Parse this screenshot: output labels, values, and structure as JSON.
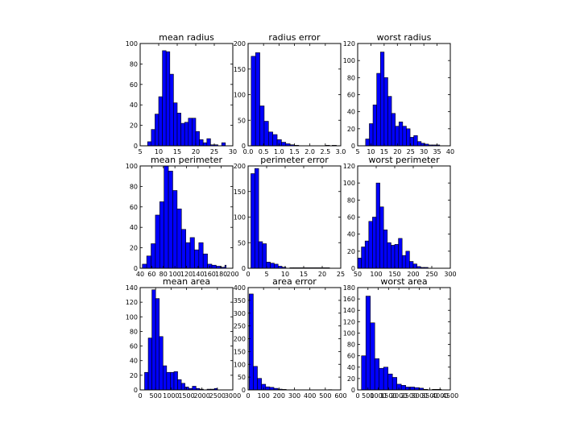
{
  "colors": {
    "bar_fill": "#0000ff",
    "bar_edge": "#000000",
    "background": "#ffffff"
  },
  "chart_data": [
    {
      "type": "bar",
      "title": "mean radius",
      "bin_edges": [
        7,
        8,
        9,
        10,
        11,
        12,
        13,
        14,
        15,
        16,
        17,
        18,
        19,
        20,
        21,
        22,
        23,
        24,
        25,
        26,
        27,
        28
      ],
      "values": [
        4,
        16,
        31,
        48,
        93,
        92,
        70,
        42,
        32,
        22,
        23,
        27,
        27,
        14,
        6,
        3,
        7,
        1,
        1,
        0,
        3
      ],
      "xlim": [
        5,
        30
      ],
      "ylim": [
        0,
        100
      ],
      "xticks": [
        5,
        10,
        15,
        20,
        25,
        30
      ],
      "xticklabels": [
        "5",
        "10",
        "15",
        "20",
        "25",
        "30"
      ],
      "yticks": [
        0,
        20,
        40,
        60,
        80,
        100
      ],
      "yticklabels": [
        "0",
        "20",
        "40",
        "60",
        "80",
        "100"
      ],
      "grid": false
    },
    {
      "type": "bar",
      "title": "radius error",
      "bin_edges": [
        0.1,
        0.24,
        0.38,
        0.52,
        0.66,
        0.8,
        0.94,
        1.08,
        1.22,
        1.36,
        1.5,
        1.64,
        2.5,
        2.64,
        2.72,
        2.86
      ],
      "values": [
        175,
        182,
        78,
        48,
        27,
        22,
        12,
        7,
        4,
        2,
        1,
        0,
        1,
        0,
        1
      ],
      "xlim": [
        0,
        3.0
      ],
      "ylim": [
        0,
        200
      ],
      "xticks": [
        0,
        0.5,
        1.0,
        1.5,
        2.0,
        2.5,
        3.0
      ],
      "xticklabels": [
        "0.0",
        "0.5",
        "1.0",
        "1.5",
        "2.0",
        "2.5",
        "3.0"
      ],
      "yticks": [
        0,
        50,
        100,
        150,
        200
      ],
      "yticklabels": [
        "0",
        "50",
        "100",
        "150",
        "200"
      ],
      "grid": false
    },
    {
      "type": "bar",
      "title": "worst radius",
      "bin_edges": [
        8,
        9.4,
        10.8,
        12.2,
        13.6,
        15,
        16.4,
        17.8,
        19.2,
        20.6,
        22,
        23.4,
        24.8,
        26.2,
        27.6,
        29,
        30.4,
        31.8,
        33.2,
        34.6,
        36
      ],
      "values": [
        8,
        26,
        48,
        85,
        110,
        80,
        58,
        38,
        23,
        28,
        23,
        20,
        10,
        12,
        5,
        3,
        2,
        1,
        1,
        1
      ],
      "xlim": [
        5,
        40
      ],
      "ylim": [
        0,
        120
      ],
      "xticks": [
        5,
        10,
        15,
        20,
        25,
        30,
        35,
        40
      ],
      "xticklabels": [
        "5",
        "10",
        "15",
        "20",
        "25",
        "30",
        "35",
        "40"
      ],
      "yticks": [
        0,
        20,
        40,
        60,
        80,
        100,
        120
      ],
      "yticklabels": [
        "0",
        "20",
        "40",
        "60",
        "80",
        "100",
        "120"
      ],
      "grid": false
    },
    {
      "type": "bar",
      "title": "mean perimeter",
      "bin_edges": [
        43.8,
        51.3,
        58.8,
        66.3,
        73.8,
        81.3,
        88.8,
        96.3,
        103.8,
        111.3,
        118.8,
        126.3,
        133.8,
        141.3,
        148.8,
        156.3,
        163.8,
        171.3,
        178.8,
        186.3,
        188.5
      ],
      "values": [
        4,
        12,
        24,
        52,
        65,
        100,
        95,
        76,
        58,
        38,
        25,
        30,
        18,
        25,
        14,
        4,
        3,
        2,
        1,
        3
      ],
      "xlim": [
        40,
        200
      ],
      "ylim": [
        0,
        100
      ],
      "xticks": [
        40,
        60,
        80,
        100,
        120,
        140,
        160,
        180,
        200
      ],
      "xticklabels": [
        "40",
        "60",
        "80",
        "100",
        "120",
        "140",
        "160",
        "180",
        "200"
      ],
      "yticks": [
        0,
        20,
        40,
        60,
        80,
        100
      ],
      "yticklabels": [
        "0",
        "20",
        "40",
        "60",
        "80",
        "100"
      ],
      "grid": false
    },
    {
      "type": "bar",
      "title": "perimeter error",
      "bin_edges": [
        0.75,
        1.8,
        2.85,
        3.9,
        4.95,
        6.0,
        7.05,
        8.1,
        9.15,
        10.2,
        11.25,
        12.3,
        21.98
      ],
      "values": [
        185,
        195,
        52,
        48,
        12,
        10,
        8,
        4,
        2,
        0,
        1,
        1
      ],
      "xlim": [
        0,
        25
      ],
      "ylim": [
        0,
        200
      ],
      "xticks": [
        0,
        5,
        10,
        15,
        20,
        25
      ],
      "xticklabels": [
        "0",
        "5",
        "10",
        "15",
        "20",
        "25"
      ],
      "yticks": [
        0,
        50,
        100,
        150,
        200
      ],
      "yticklabels": [
        "0",
        "50",
        "100",
        "150",
        "200"
      ],
      "grid": false
    },
    {
      "type": "bar",
      "title": "worst perimeter",
      "bin_edges": [
        50,
        60,
        70,
        80,
        90,
        100,
        110,
        120,
        130,
        140,
        150,
        160,
        170,
        180,
        190,
        200,
        210,
        220,
        230,
        240
      ],
      "values": [
        12,
        25,
        32,
        55,
        60,
        100,
        72,
        45,
        30,
        27,
        28,
        35,
        15,
        20,
        8,
        5,
        2,
        1,
        1
      ],
      "xlim": [
        50,
        300
      ],
      "ylim": [
        0,
        120
      ],
      "xticks": [
        50,
        100,
        150,
        200,
        250,
        300
      ],
      "xticklabels": [
        "50",
        "100",
        "150",
        "200",
        "250",
        "300"
      ],
      "yticks": [
        0,
        20,
        40,
        60,
        80,
        100,
        120
      ],
      "yticklabels": [
        "0",
        "20",
        "40",
        "60",
        "80",
        "100",
        "120"
      ],
      "grid": false
    },
    {
      "type": "bar",
      "title": "mean area",
      "bin_edges": [
        143,
        262,
        381,
        500,
        619,
        738,
        857,
        976,
        1095,
        1214,
        1333,
        1452,
        1571,
        1690,
        1809,
        1928,
        2047,
        2166,
        2285,
        2404,
        2501
      ],
      "values": [
        24,
        71,
        137,
        125,
        73,
        33,
        24,
        24,
        25,
        14,
        9,
        4,
        2,
        5,
        2,
        1,
        0,
        1,
        1,
        2
      ],
      "xlim": [
        0,
        3000
      ],
      "ylim": [
        0,
        140
      ],
      "xticks": [
        0,
        500,
        1000,
        1500,
        2000,
        2500,
        3000
      ],
      "xticklabels": [
        "0",
        "500",
        "1000",
        "1500",
        "2000",
        "2500",
        "3000"
      ],
      "yticks": [
        0,
        20,
        40,
        60,
        80,
        100,
        120,
        140
      ],
      "yticklabels": [
        "0",
        "20",
        "40",
        "60",
        "80",
        "100",
        "120",
        "140"
      ],
      "grid": false
    },
    {
      "type": "bar",
      "title": "area error",
      "bin_edges": [
        6.8,
        33.5,
        60.2,
        86.9,
        113.6,
        140.3,
        167,
        193.7,
        220.4,
        247.1,
        520,
        542.2
      ],
      "values": [
        375,
        92,
        45,
        22,
        12,
        10,
        6,
        3,
        2,
        0,
        1
      ],
      "xlim": [
        0,
        600
      ],
      "ylim": [
        0,
        400
      ],
      "xticks": [
        0,
        100,
        200,
        300,
        400,
        500,
        600
      ],
      "xticklabels": [
        "0",
        "100",
        "200",
        "300",
        "400",
        "500",
        "600"
      ],
      "yticks": [
        0,
        50,
        100,
        150,
        200,
        250,
        300,
        350,
        400
      ],
      "yticklabels": [
        "0",
        "50",
        "100",
        "150",
        "200",
        "250",
        "300",
        "350",
        "400"
      ],
      "grid": false
    },
    {
      "type": "bar",
      "title": "worst area",
      "bin_edges": [
        185,
        400,
        615,
        830,
        1045,
        1260,
        1475,
        1690,
        1905,
        2120,
        2335,
        2550,
        2765,
        2980,
        3195,
        3410,
        3625,
        3840,
        4055
      ],
      "values": [
        60,
        165,
        118,
        55,
        38,
        40,
        28,
        22,
        10,
        8,
        5,
        5,
        4,
        3,
        1,
        0,
        1,
        1
      ],
      "xlim": [
        0,
        4500
      ],
      "ylim": [
        0,
        180
      ],
      "xticks": [
        0,
        500,
        1000,
        1500,
        2000,
        2500,
        3000,
        3500,
        4000,
        4500
      ],
      "xticklabels": [
        "0",
        "500",
        "1000",
        "1500",
        "2000",
        "2500",
        "3000",
        "3500",
        "4000",
        "4500"
      ],
      "yticks": [
        0,
        20,
        40,
        60,
        80,
        100,
        120,
        140,
        160,
        180
      ],
      "yticklabels": [
        "0",
        "20",
        "40",
        "60",
        "80",
        "100",
        "120",
        "140",
        "160",
        "180"
      ],
      "grid": false
    }
  ]
}
